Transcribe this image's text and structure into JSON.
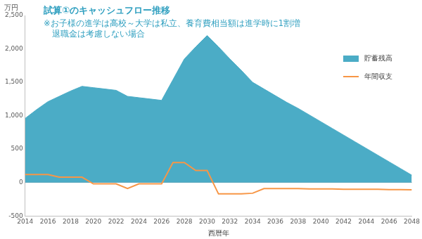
{
  "chart_data": {
    "type": "line",
    "title": "試算①のキャッシュフロー推移",
    "subtitle": [
      "※お子様の進学は高校～大学は私立、養育費相当額は進学時に1割増",
      "退職金は考慮しない場合"
    ],
    "y_label": "万円",
    "x_label": "西暦年",
    "x": [
      2014,
      2015,
      2016,
      2017,
      2018,
      2019,
      2020,
      2021,
      2022,
      2023,
      2024,
      2025,
      2026,
      2027,
      2028,
      2029,
      2030,
      2031,
      2032,
      2033,
      2034,
      2035,
      2036,
      2037,
      2038,
      2039,
      2040,
      2041,
      2042,
      2043,
      2044,
      2045,
      2046,
      2047,
      2048
    ],
    "series": [
      {
        "name": "貯蓄残高",
        "type": "area",
        "color": "#4bacc6",
        "values": [
          960,
          1090,
          1210,
          1290,
          1370,
          1440,
          1420,
          1400,
          1380,
          1290,
          1270,
          1250,
          1230,
          1540,
          1850,
          2030,
          2200,
          2030,
          1850,
          1680,
          1500,
          1400,
          1300,
          1200,
          1110,
          1010,
          910,
          810,
          710,
          610,
          510,
          410,
          310,
          210,
          110
        ]
      },
      {
        "name": "年間収支",
        "type": "line",
        "color": "#f79646",
        "values": [
          120,
          120,
          120,
          80,
          80,
          80,
          -20,
          -20,
          -20,
          -90,
          -20,
          -20,
          -20,
          300,
          300,
          180,
          180,
          -170,
          -170,
          -170,
          -160,
          -90,
          -90,
          -90,
          -90,
          -95,
          -95,
          -95,
          -100,
          -100,
          -100,
          -100,
          -105,
          -105,
          -110
        ]
      }
    ],
    "xlim": [
      2014,
      2048
    ],
    "xticks": [
      2014,
      2016,
      2018,
      2020,
      2022,
      2024,
      2026,
      2028,
      2030,
      2032,
      2034,
      2036,
      2038,
      2040,
      2042,
      2044,
      2046,
      2048
    ],
    "ylim": [
      -500,
      2500
    ],
    "yticks": [
      -500,
      0,
      {
        "value": 500,
        "label": "500"
      },
      {
        "value": 1000,
        "label": "1,000"
      },
      {
        "value": 1500,
        "label": "1,500"
      },
      {
        "value": 2000,
        "label": "2,000"
      },
      {
        "value": 2500,
        "label": "2,500"
      }
    ],
    "grid": false,
    "legend": "right"
  }
}
